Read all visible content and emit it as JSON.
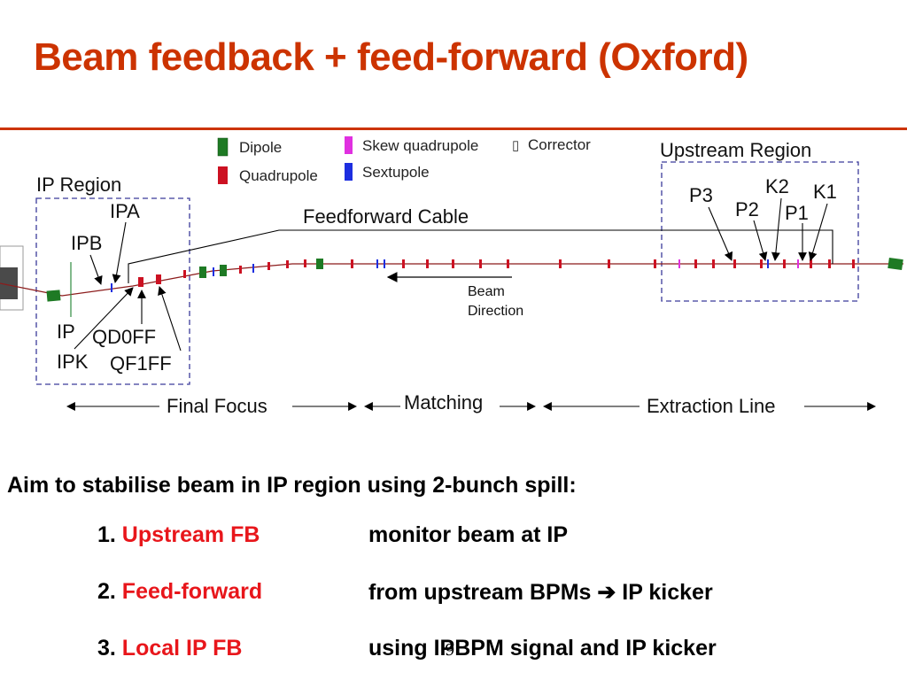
{
  "title": "Beam feedback + feed-forward (Oxford)",
  "legend": {
    "dipole": "Dipole",
    "quadrupole": "Quadrupole",
    "skew": "Skew quadrupole",
    "sextupole": "Sextupole",
    "corrector": "Corrector",
    "corrector_glyph": "▯"
  },
  "diagram": {
    "ip_region": "IP Region",
    "upstream_region": "Upstream Region",
    "feedforward_cable": "Feedforward Cable",
    "beam": "Beam",
    "direction": "Direction",
    "labels": {
      "ipa": "IPA",
      "ipb": "IPB",
      "ip": "IP",
      "ipk": "IPK",
      "qd0ff": "QD0FF",
      "qf1ff": "QF1FF",
      "p1": "P1",
      "p2": "P2",
      "p3": "P3",
      "k1": "K1",
      "k2": "K2"
    },
    "sections": {
      "final_focus": "Final Focus",
      "matching": "Matching",
      "extraction": "Extraction Line"
    }
  },
  "colors": {
    "title": "#cc3300",
    "highlight": "#e8161b",
    "dipole": "#1e7a24",
    "quad": "#cc1122",
    "skew": "#e030e0",
    "sext": "#1d2ee0",
    "region_box": "#3b3b9a"
  },
  "aim": "Aim to stabilise beam in IP region using 2-bunch spill:",
  "items": [
    {
      "num": "1. ",
      "label": "Upstream FB",
      "desc": "monitor  beam at IP"
    },
    {
      "num": "2. ",
      "label": "Feed-forward",
      "desc": "from upstream BPMs ➔ IP kicker"
    },
    {
      "num": "3. ",
      "label": "Local IP FB",
      "desc": "using IPBPM signal and IP kicker"
    }
  ],
  "page_number": "9"
}
